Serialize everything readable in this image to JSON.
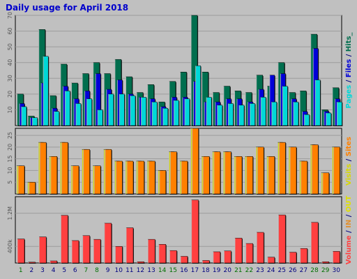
{
  "chart_data": {
    "title": "Daily usage for April 2018",
    "days": [
      "1",
      "2",
      "3",
      "4",
      "5",
      "6",
      "7",
      "8",
      "9",
      "10",
      "11",
      "12",
      "13",
      "14",
      "15",
      "16",
      "17",
      "18",
      "19",
      "20",
      "21",
      "22",
      "23",
      "24",
      "25",
      "26",
      "27",
      "28",
      "29",
      "30"
    ],
    "weekend_days": [
      "1",
      "7",
      "8",
      "14",
      "15",
      "21",
      "22",
      "28",
      "29"
    ],
    "colors": {
      "pages": "#00d8d8",
      "files": "#0000d8",
      "hits": "#006e4e",
      "visits": "#d8d800",
      "sites": "#ff8000",
      "volume": "#ff4040",
      "in": "#e09030",
      "out": "#e0e000",
      "background": "#c0c0c0",
      "weekend": "#007000",
      "weekday": "#000080"
    },
    "panels": [
      {
        "type": "bar",
        "name": "top",
        "ylim": [
          0,
          70
        ],
        "ticks": [
          "10",
          "20",
          "30",
          "40",
          "50",
          "60",
          "70"
        ],
        "series": [
          {
            "name": "Hits",
            "values": [
              20,
              6,
              61,
              19,
              39,
              27,
              33,
              40,
              33,
              42,
              31,
              21,
              26,
              15,
              28,
              34,
              70,
              34,
              21,
              25,
              22,
              21,
              32,
              25,
              40,
              21,
              22,
              58,
              10,
              24
            ]
          },
          {
            "name": "Files",
            "values": [
              14,
              5,
              27,
              11,
              25,
              17,
              22,
              33,
              23,
              29,
              20,
              18,
              17,
              12,
              18,
              18,
              28,
              15,
              15,
              17,
              17,
              15,
              23,
              32,
              33,
              17,
              9,
              49,
              9,
              17
            ]
          },
          {
            "name": "Pages",
            "values": [
              12,
              5,
              44,
              9,
              22,
              14,
              17,
              10,
              20,
              20,
              19,
              18,
              15,
              11,
              16,
              17,
              38,
              18,
              13,
              14,
              13,
              14,
              18,
              15,
              25,
              15,
              7,
              29,
              8,
              15
            ]
          }
        ]
      },
      {
        "type": "bar",
        "name": "middle",
        "ylim": [
          0,
          28
        ],
        "ticks": [
          "5",
          "10",
          "15",
          "20",
          "25"
        ],
        "series": [
          {
            "name": "Visits",
            "values": [
              12,
              5,
              22,
              16,
              22,
              12,
              19,
              12,
              19,
              14,
              14,
              14,
              14,
              10,
              18,
              14,
              28,
              16,
              18,
              18,
              16,
              16,
              20,
              16,
              22,
              20,
              14,
              21,
              9,
              20
            ]
          },
          {
            "name": "Sites",
            "values": [
              12,
              5,
              22,
              16,
              22,
              12,
              19,
              12,
              19,
              14,
              14,
              14,
              14,
              10,
              18,
              14,
              28,
              16,
              18,
              18,
              16,
              16,
              20,
              16,
              22,
              20,
              14,
              21,
              9,
              20
            ]
          }
        ]
      },
      {
        "type": "bar",
        "name": "bottom",
        "ylim": [
          0,
          1600000
        ],
        "ticks": [
          "400k",
          "1.2M"
        ],
        "series": [
          {
            "name": "Volume",
            "values": [
              580000,
              20000,
              630000,
              50000,
              1150000,
              540000,
              660000,
              570000,
              960000,
              400000,
              850000,
              30000,
              570000,
              450000,
              300000,
              160000,
              1520000,
              60000,
              270000,
              290000,
              600000,
              470000,
              740000,
              140000,
              1160000,
              260000,
              350000,
              980000,
              30000,
              280000
            ]
          }
        ]
      }
    ],
    "right_labels": {
      "top": [
        {
          "text": "Pages",
          "key": "pages"
        },
        {
          "text": " / ",
          "key": "weekday"
        },
        {
          "text": "Files",
          "key": "files"
        },
        {
          "text": " / ",
          "key": "weekday"
        },
        {
          "text": "Hits",
          "key": "hits"
        },
        {
          "text": "_",
          "key": "hits"
        }
      ],
      "middle": [
        {
          "text": "Visits",
          "key": "visits"
        },
        {
          "text": " / ",
          "key": "weekday"
        },
        {
          "text": "Sites",
          "key": "sites"
        }
      ],
      "bottom": [
        {
          "text": "Volume",
          "key": "volume"
        },
        {
          "text": " / ",
          "key": "weekday"
        },
        {
          "text": "IN",
          "key": "in"
        },
        {
          "text": " / ",
          "key": "weekday"
        },
        {
          "text": "OUT",
          "key": "out"
        }
      ]
    }
  }
}
